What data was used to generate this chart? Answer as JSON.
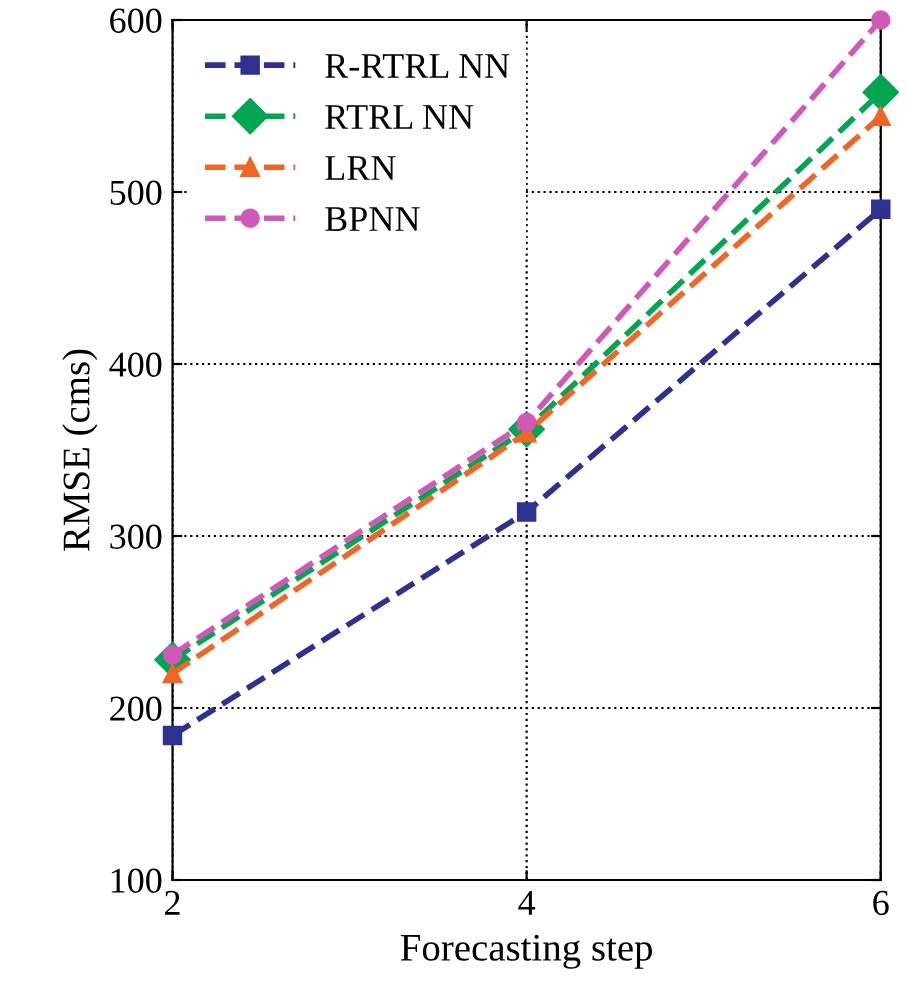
{
  "chart_data": {
    "type": "line",
    "xlabel": "Forecasting step",
    "ylabel": "RMSE (cms)",
    "x": [
      2,
      4,
      6
    ],
    "series": [
      {
        "name": "R-RTRL NN",
        "color": "#2e3192",
        "marker": "square",
        "values": [
          184,
          314,
          490
        ]
      },
      {
        "name": "RTRL NN",
        "color": "#00a651",
        "marker": "diamond",
        "values": [
          228,
          362,
          558
        ]
      },
      {
        "name": "LRN",
        "color": "#f26522",
        "marker": "triangle",
        "values": [
          220,
          360,
          544
        ]
      },
      {
        "name": "BPNN",
        "color": "#d158b8",
        "marker": "circle",
        "values": [
          231,
          366,
          600
        ]
      }
    ],
    "xlim": [
      2,
      6
    ],
    "xticks": [
      2,
      4,
      6
    ],
    "ylim": [
      100,
      600
    ],
    "yticks": [
      100,
      200,
      300,
      400,
      500,
      600
    ],
    "grid": true,
    "legend": "top left",
    "line_style": "dashed"
  }
}
